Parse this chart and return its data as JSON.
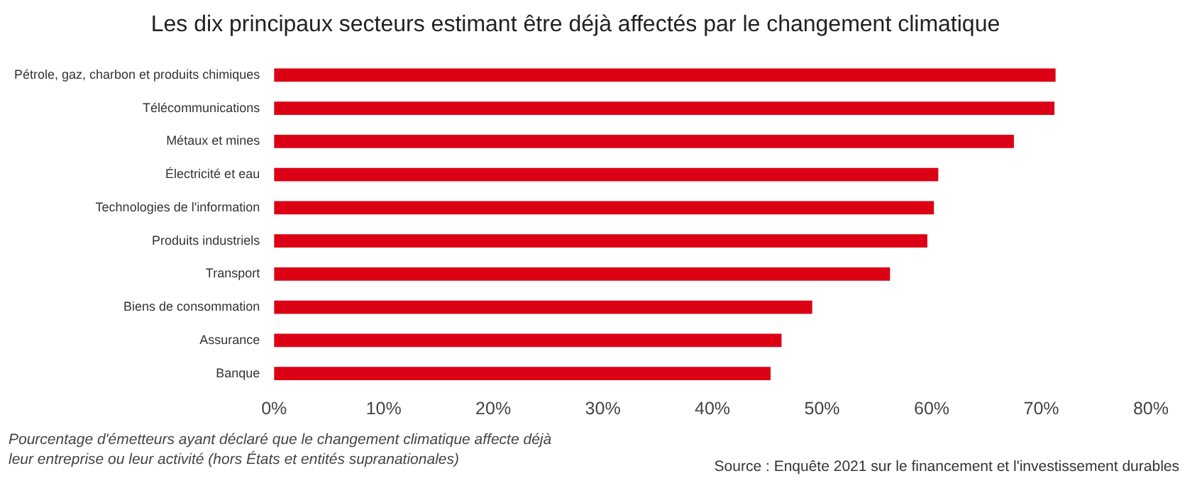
{
  "chart_data": {
    "type": "bar",
    "orientation": "horizontal",
    "title": "Les dix principaux secteurs estimant être déjà affectés par le changement climatique",
    "categories": [
      "Pétrole, gaz, charbon et produits chimiques",
      "Télécommunications",
      "Métaux et mines",
      "Électricité et eau",
      "Technologies de l'information",
      "Produits industriels",
      "Transport",
      "Biens de consommation",
      "Assurance",
      "Banque"
    ],
    "values": [
      71.3,
      71.2,
      67.5,
      60.6,
      60.2,
      59.6,
      56.2,
      49.1,
      46.3,
      45.3
    ],
    "color": "#dc0014",
    "xlim": [
      0,
      80
    ],
    "xticks": [
      {
        "value": 0,
        "label": "0%"
      },
      {
        "value": 10,
        "label": "10%"
      },
      {
        "value": 20,
        "label": "20%"
      },
      {
        "value": 30,
        "label": "30%"
      },
      {
        "value": 40,
        "label": "40%"
      },
      {
        "value": 50,
        "label": "50%"
      },
      {
        "value": 60,
        "label": "60%"
      },
      {
        "value": 70,
        "label": "70%"
      },
      {
        "value": 80,
        "label": "80%"
      }
    ],
    "grid": false,
    "legend": false,
    "annotations": [
      "Pourcentage d'émetteurs ayant déclaré que le changement climatique affecte déjà leur entreprise ou leur activité (hors États et entités supranationales)",
      "Source : Enquête 2021 sur le financement et l'investissement durables"
    ]
  }
}
